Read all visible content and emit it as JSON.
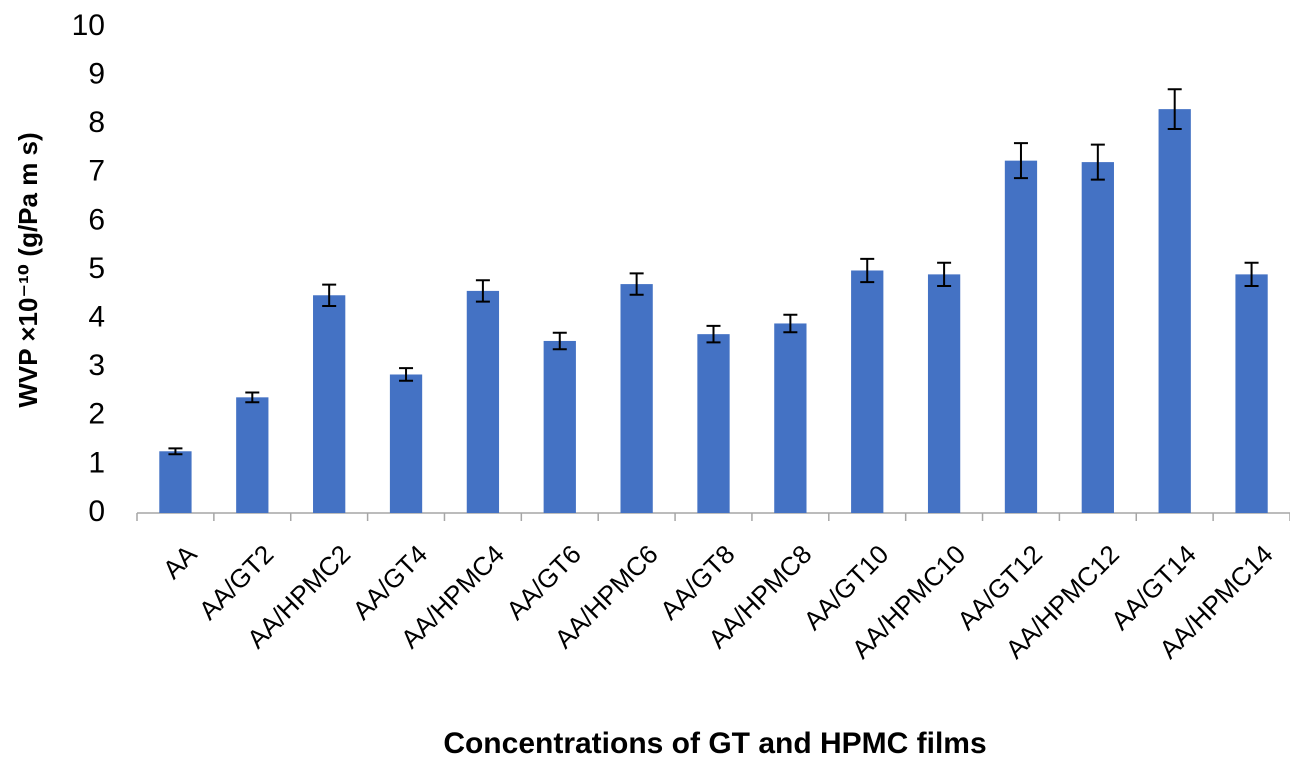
{
  "chart_data": {
    "type": "bar",
    "x_label": "Concentrations of GT and HPMC films",
    "y_label": "WVP ×10⁻¹⁰ (g/Pa m s)",
    "categories": [
      "AA",
      "AA/GT2",
      "AA/HPMC2",
      "AA/GT4",
      "AA/HPMC4",
      "AA/GT6",
      "AA/HPMC6",
      "AA/GT8",
      "AA/HPMC8",
      "AA/GT10",
      "AA/HPMC10",
      "AA/GT12",
      "AA/HPMC12",
      "AA/GT14",
      "AA/HPMC14"
    ],
    "values": [
      1.27,
      2.38,
      4.48,
      2.85,
      4.57,
      3.54,
      4.71,
      3.68,
      3.9,
      4.99,
      4.91,
      7.25,
      7.22,
      8.31,
      4.91
    ],
    "errors": [
      0.06,
      0.1,
      0.22,
      0.13,
      0.22,
      0.17,
      0.22,
      0.17,
      0.18,
      0.24,
      0.24,
      0.36,
      0.36,
      0.41,
      0.24
    ],
    "color": "#4472c4",
    "ylim": [
      0,
      10
    ],
    "yticks": [
      0,
      1,
      2,
      3,
      4,
      5,
      6,
      7,
      8,
      9,
      10
    ],
    "grid": false
  }
}
